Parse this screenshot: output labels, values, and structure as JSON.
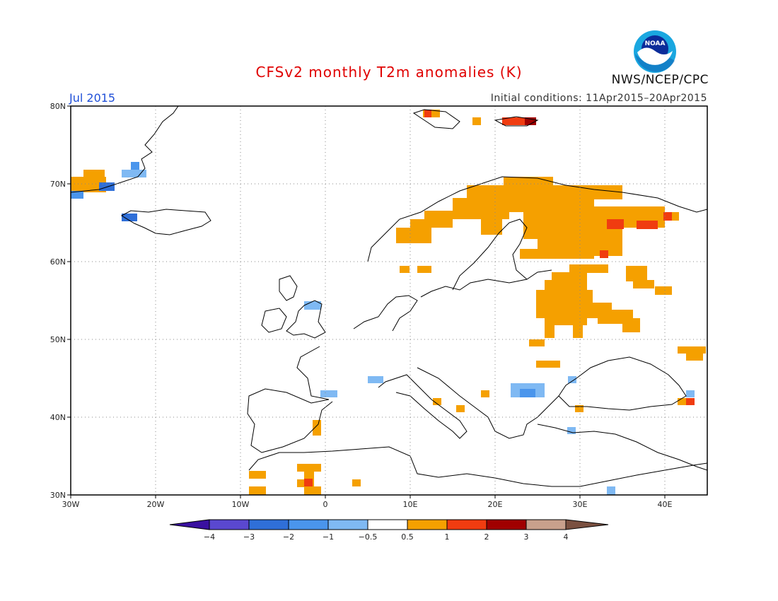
{
  "header": {
    "title": "CFSv2 monthly T2m anomalies (K)",
    "month": "Jul 2015",
    "initial_conditions": "Initial conditions: 11Apr2015–20Apr2015",
    "org": "NWS/NCEP/CPC",
    "logo_text": "NOAA"
  },
  "axes": {
    "lon_labels": [
      "30W",
      "20W",
      "10W",
      "0",
      "10E",
      "20E",
      "30E",
      "40E"
    ],
    "lat_labels": [
      "80N",
      "70N",
      "60N",
      "50N",
      "40N",
      "30N"
    ]
  },
  "colorbar": {
    "labels": [
      "−4",
      "−3",
      "−2",
      "−1",
      "−0.5",
      "0.5",
      "1",
      "2",
      "3",
      "4"
    ],
    "colors": [
      "#3a10a0",
      "#5a48d0",
      "#2f6fd8",
      "#4a95ec",
      "#7fb9f3",
      "#ffffff",
      "#f5a000",
      "#f03c10",
      "#a00000",
      "#c8a08c",
      "#7a5040"
    ]
  },
  "anomaly_colors": {
    "warm1": "#f5a000",
    "warm2": "#f03c10",
    "warm3": "#a00000",
    "cool1": "#7fb9f3",
    "cool2": "#4a95ec",
    "cool3": "#2f6fd8"
  }
}
